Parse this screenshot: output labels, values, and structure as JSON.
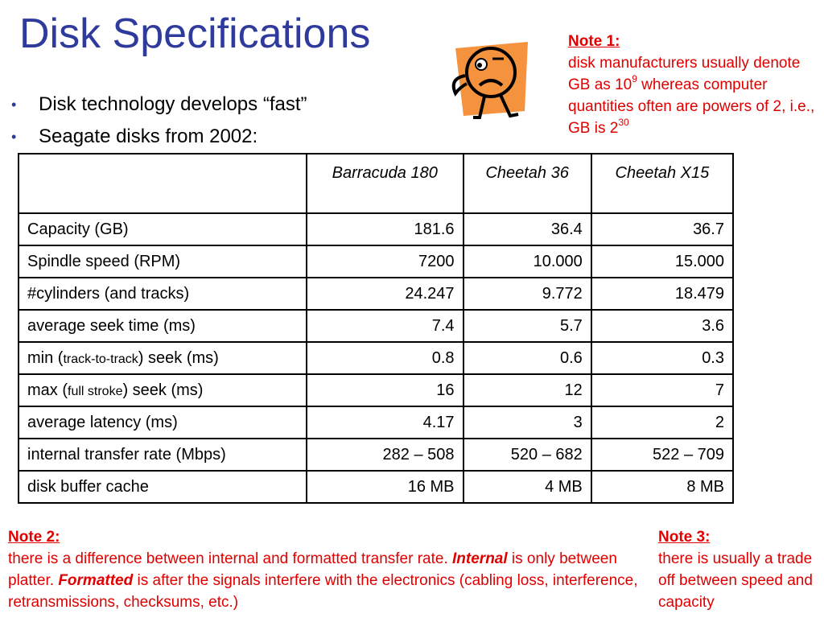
{
  "title": "Disk Specifications",
  "bullets": [
    "Disk technology develops “fast”",
    "Seagate disks from 2002:"
  ],
  "note1": {
    "heading": "Note 1:",
    "line1": "disk manufacturers usually denote GB as 10",
    "sup1": "9",
    "line2": " whereas computer quantities often are powers of 2, i.e., GB is 2",
    "sup2": "30"
  },
  "table": {
    "columns": [
      "",
      "Barracuda 180",
      "Cheetah 36",
      "Cheetah X15"
    ],
    "rows": [
      {
        "label": "Capacity (GB)",
        "values": [
          "181.6",
          "36.4",
          "36.7"
        ]
      },
      {
        "label": "Spindle speed (RPM)",
        "values": [
          "7200",
          "10.000",
          "15.000"
        ]
      },
      {
        "label": "#cylinders (and tracks)",
        "values": [
          "24.247",
          "9.772",
          "18.479"
        ]
      },
      {
        "label": "average seek time (ms)",
        "values": [
          "7.4",
          "5.7",
          "3.6"
        ]
      },
      {
        "label_pre": "min (",
        "label_small": "track-to-track",
        "label_post": ") seek (ms)",
        "values": [
          "0.8",
          "0.6",
          "0.3"
        ]
      },
      {
        "label_pre": "max (",
        "label_small": "full stroke",
        "label_post": ") seek (ms)",
        "values": [
          "16",
          "12",
          "7"
        ]
      },
      {
        "label": "average latency (ms)",
        "values": [
          "4.17",
          "3",
          "2"
        ]
      },
      {
        "label": "internal transfer rate (Mbps)",
        "values": [
          "282 – 508",
          "520 – 682",
          "522 – 709"
        ]
      },
      {
        "label": "disk buffer cache",
        "values": [
          "16 MB",
          "4 MB",
          "8 MB"
        ]
      }
    ]
  },
  "note2": {
    "heading": "Note 2:",
    "text1": "there is a difference between internal and formatted transfer rate. ",
    "em1": "Internal",
    "text2": " is only between platter. ",
    "em2": "Formatted",
    "text3": "  is after the signals interfere with the electronics (cabling loss, interference, retransmissions, checksums, etc.)"
  },
  "note3": {
    "heading": "Note 3:",
    "text": "there is usually a trade off between speed and capacity"
  },
  "colors": {
    "title": "#2e3a9c",
    "note": "#e00000",
    "face_background": "#f5923e"
  },
  "icons": {
    "face": "worried-face-icon"
  }
}
